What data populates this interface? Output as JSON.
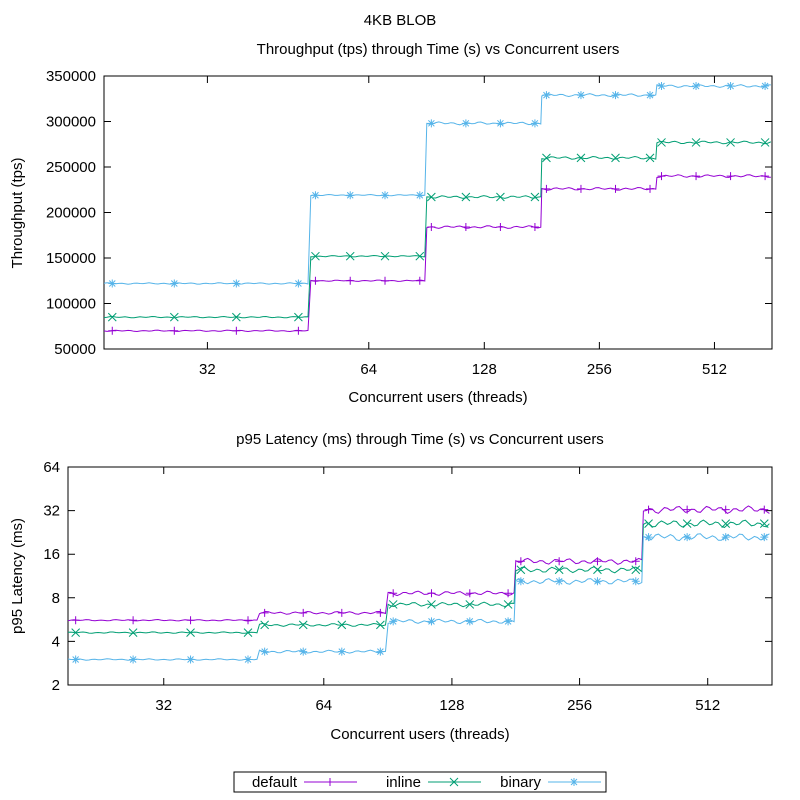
{
  "figure": {
    "title": "4KB BLOB"
  },
  "legend": {
    "placement": "bottom-center"
  },
  "chart_data": [
    {
      "type": "line",
      "title": "Throughput (tps) through Time (s) vs Concurrent users",
      "xlabel": "Concurrent users (threads)",
      "ylabel": "Throughput (tps)",
      "ylim": [
        50000,
        350000
      ],
      "yticks": [
        "50000",
        "100000",
        "150000",
        "200000",
        "250000",
        "300000",
        "350000"
      ],
      "categories": [
        "32",
        "64",
        "128",
        "256",
        "512"
      ],
      "series": [
        {
          "name": "default",
          "color": "#9400d3",
          "values": [
            70000,
            125000,
            184000,
            226000,
            240000
          ]
        },
        {
          "name": "inline",
          "color": "#009e73",
          "values": [
            85000,
            152000,
            217000,
            260000,
            277000
          ]
        },
        {
          "name": "binary",
          "color": "#56b4e9",
          "values": [
            122000,
            219000,
            298000,
            329000,
            339000
          ]
        }
      ]
    },
    {
      "type": "line",
      "title": "p95 Latency (ms) through Time (s) vs Concurrent users",
      "xlabel": "Concurrent users (threads)",
      "ylabel": "p95 Latency (ms)",
      "yscale": "log2",
      "ylim": [
        2,
        64
      ],
      "yticks": [
        "2",
        "4",
        "8",
        "16",
        "32",
        "64"
      ],
      "categories": [
        "32",
        "64",
        "128",
        "256",
        "512"
      ],
      "series": [
        {
          "name": "default",
          "color": "#9400d3",
          "values": [
            5.6,
            6.3,
            8.6,
            14.3,
            32.5
          ]
        },
        {
          "name": "inline",
          "color": "#009e73",
          "values": [
            4.6,
            5.2,
            7.2,
            12.5,
            26.0
          ]
        },
        {
          "name": "binary",
          "color": "#56b4e9",
          "values": [
            3.0,
            3.4,
            5.5,
            10.4,
            21.0
          ]
        }
      ]
    }
  ]
}
